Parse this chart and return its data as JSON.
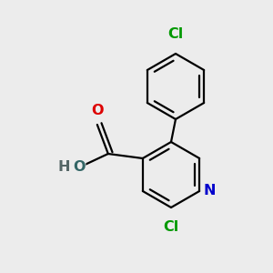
{
  "bg_color": "#ececec",
  "bond_color": "#000000",
  "bond_width": 1.6,
  "atom_colors": {
    "N": "#0000cc",
    "O_carbonyl": "#dd0000",
    "O_hydroxyl": "#336666",
    "Cl": "#009900",
    "H": "#556666"
  },
  "font_size": 11.5
}
